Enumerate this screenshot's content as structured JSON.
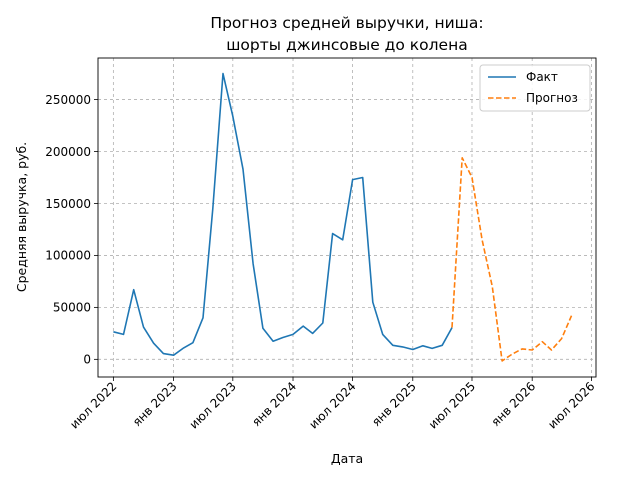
{
  "chart_data": {
    "type": "line",
    "title": [
      "Прогноз средней выручки, ниша:",
      "шорты джинсовые до колена"
    ],
    "xlabel": "Дата",
    "ylabel": "Средняя выручка, руб.",
    "ylim": [
      -17000,
      290000
    ],
    "xlim": [
      "2022-05-15",
      "2026-07-15"
    ],
    "grid": true,
    "legend_position": "top-right",
    "y_ticks": [
      {
        "value": 0,
        "label": "0"
      },
      {
        "value": 50000,
        "label": "50000"
      },
      {
        "value": 100000,
        "label": "100000"
      },
      {
        "value": 150000,
        "label": "150000"
      },
      {
        "value": 200000,
        "label": "200000"
      },
      {
        "value": 250000,
        "label": "250000"
      }
    ],
    "x_ticks": [
      {
        "date": "2022-07-01",
        "label": "июл 2022"
      },
      {
        "date": "2023-01-01",
        "label": "янв 2023"
      },
      {
        "date": "2023-07-01",
        "label": "июл 2023"
      },
      {
        "date": "2024-01-01",
        "label": "янв 2024"
      },
      {
        "date": "2024-07-01",
        "label": "июл 2024"
      },
      {
        "date": "2025-01-01",
        "label": "янв 2025"
      },
      {
        "date": "2025-07-01",
        "label": "июл 2025"
      },
      {
        "date": "2026-01-01",
        "label": "янв 2026"
      },
      {
        "date": "2026-07-01",
        "label": "июл 2026"
      }
    ],
    "series": [
      {
        "name": "Факт",
        "color": "#1f77b4",
        "dash": "solid",
        "points": [
          [
            "2022-07-01",
            26500
          ],
          [
            "2022-08-01",
            24000
          ],
          [
            "2022-09-01",
            67000
          ],
          [
            "2022-10-01",
            31000
          ],
          [
            "2022-11-01",
            15500
          ],
          [
            "2022-12-01",
            5500
          ],
          [
            "2023-01-01",
            4000
          ],
          [
            "2023-02-01",
            11000
          ],
          [
            "2023-03-01",
            16000
          ],
          [
            "2023-04-01",
            40000
          ],
          [
            "2023-05-01",
            145000
          ],
          [
            "2023-06-01",
            275000
          ],
          [
            "2023-07-01",
            234000
          ],
          [
            "2023-08-01",
            183000
          ],
          [
            "2023-09-01",
            92000
          ],
          [
            "2023-10-01",
            30000
          ],
          [
            "2023-11-01",
            17500
          ],
          [
            "2023-12-01",
            21000
          ],
          [
            "2024-01-01",
            24000
          ],
          [
            "2024-02-01",
            32000
          ],
          [
            "2024-03-01",
            25000
          ],
          [
            "2024-04-01",
            35000
          ],
          [
            "2024-05-01",
            121000
          ],
          [
            "2024-06-01",
            115000
          ],
          [
            "2024-07-01",
            173000
          ],
          [
            "2024-08-01",
            175000
          ],
          [
            "2024-09-01",
            55000
          ],
          [
            "2024-10-01",
            24000
          ],
          [
            "2024-11-01",
            13500
          ],
          [
            "2024-12-01",
            12000
          ],
          [
            "2025-01-01",
            9500
          ],
          [
            "2025-02-01",
            13000
          ],
          [
            "2025-03-01",
            10500
          ],
          [
            "2025-04-01",
            13500
          ],
          [
            "2025-05-01",
            30500
          ]
        ]
      },
      {
        "name": "Прогноз",
        "color": "#ff7f0e",
        "dash": "dashed",
        "points": [
          [
            "2025-05-01",
            30500
          ],
          [
            "2025-06-01",
            194000
          ],
          [
            "2025-07-01",
            175000
          ],
          [
            "2025-08-01",
            115000
          ],
          [
            "2025-09-01",
            70000
          ],
          [
            "2025-10-01",
            -1500
          ],
          [
            "2025-11-01",
            5000
          ],
          [
            "2025-12-01",
            10000
          ],
          [
            "2026-01-01",
            9000
          ],
          [
            "2026-02-01",
            17000
          ],
          [
            "2026-03-01",
            9000
          ],
          [
            "2026-04-01",
            20000
          ],
          [
            "2026-05-01",
            42000
          ]
        ]
      }
    ]
  }
}
